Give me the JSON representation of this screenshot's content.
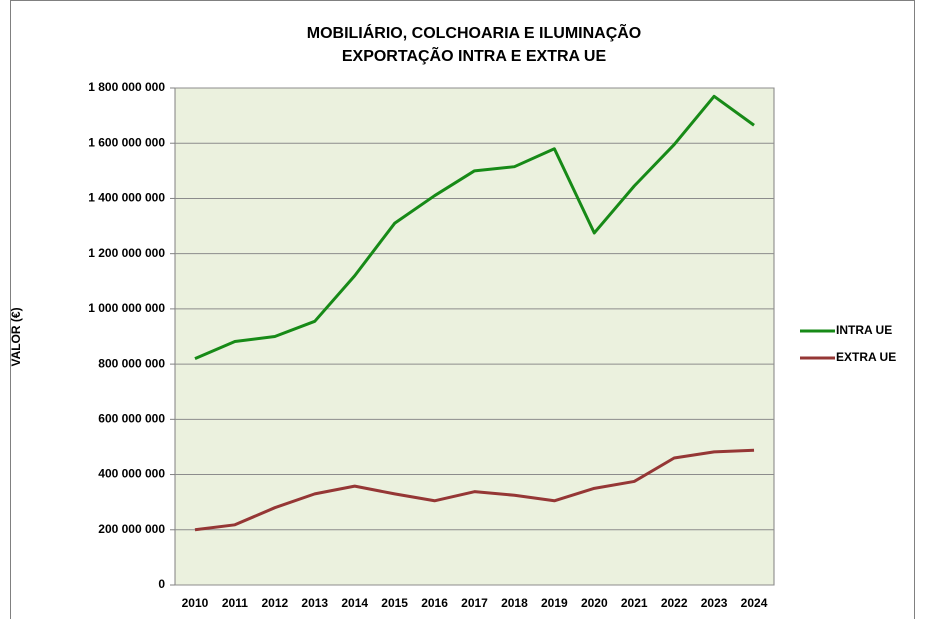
{
  "chart_data": {
    "type": "line",
    "title": [
      "MOBILIÁRIO, COLCHOARIA E ILUMINAÇÃO",
      "EXPORTAÇÃO INTRA E EXTRA UE"
    ],
    "y_label": "VALOR (€)",
    "categories": [
      "2010",
      "2011",
      "2012",
      "2013",
      "2014",
      "2015",
      "2016",
      "2017",
      "2018",
      "2019",
      "2020",
      "2021",
      "2022",
      "2023",
      "2024"
    ],
    "series": [
      {
        "name": "INTRA UE",
        "color": "#178a17",
        "values": [
          820000000,
          882000000,
          900000000,
          955000000,
          1120000000,
          1310000000,
          1410000000,
          1500000000,
          1515000000,
          1580000000,
          1275000000,
          1445000000,
          1595000000,
          1770000000,
          1665000000
        ]
      },
      {
        "name": "EXTRA UE",
        "color": "#953735",
        "values": [
          200000000,
          218000000,
          280000000,
          330000000,
          358000000,
          330000000,
          305000000,
          338000000,
          325000000,
          305000000,
          350000000,
          375000000,
          460000000,
          482000000,
          488000000
        ]
      }
    ],
    "ylim": [
      0,
      1800000000
    ],
    "yticks": [
      0,
      {
        "value": 200000000,
        "label": "200 000 000"
      },
      {
        "value": 400000000,
        "label": "400 000 000"
      },
      {
        "value": 600000000,
        "label": "600 000 000"
      },
      {
        "value": 800000000,
        "label": "800 000 000"
      },
      {
        "value": 1000000000,
        "label": "1 000 000 000"
      },
      {
        "value": 1200000000,
        "label": "1 200 000 000"
      },
      {
        "value": 1400000000,
        "label": "1 400 000 000"
      },
      {
        "value": 1600000000,
        "label": "1 600 000 000"
      },
      {
        "value": 1800000000,
        "label": "1 800 000 000"
      }
    ],
    "grid": true,
    "plot_background": "#ebf1de",
    "legend": "right"
  }
}
